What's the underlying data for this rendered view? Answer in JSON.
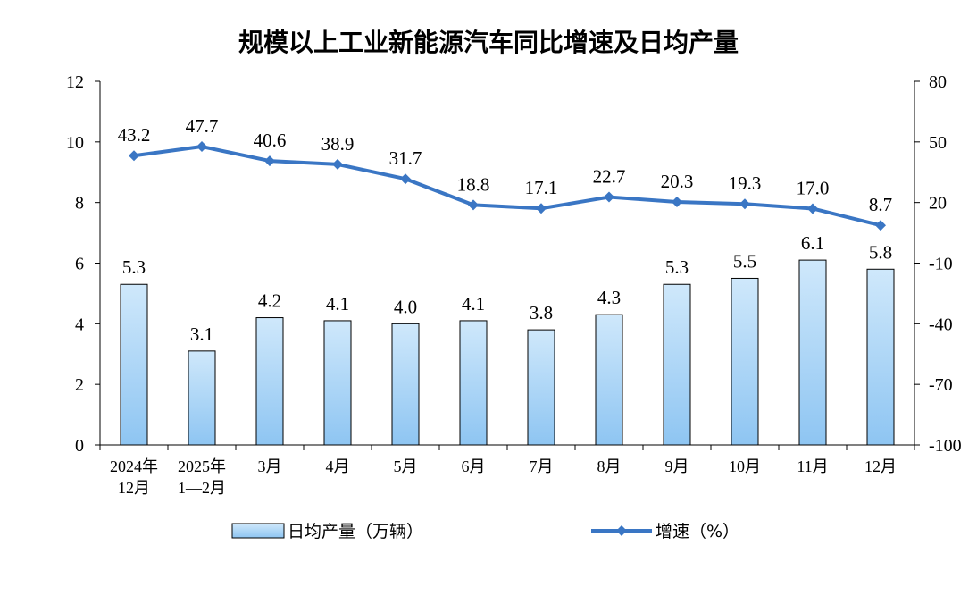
{
  "chart_data": {
    "type": "bar+line",
    "title": "规模以上工业新能源汽车同比增速及日均产量",
    "categories": [
      [
        "2024年",
        "12月"
      ],
      [
        "2025年",
        "1—2月"
      ],
      [
        "3月"
      ],
      [
        "4月"
      ],
      [
        "5月"
      ],
      [
        "6月"
      ],
      [
        "7月"
      ],
      [
        "8月"
      ],
      [
        "9月"
      ],
      [
        "10月"
      ],
      [
        "11月"
      ],
      [
        "12月"
      ]
    ],
    "series": [
      {
        "name": "日均产量（万辆）",
        "type": "bar",
        "axis": "left",
        "values": [
          5.3,
          3.1,
          4.2,
          4.1,
          4.0,
          4.1,
          3.8,
          4.3,
          5.3,
          5.5,
          6.1,
          5.8
        ],
        "labels": [
          "5.3",
          "3.1",
          "4.2",
          "4.1",
          "4.0",
          "4.1",
          "3.8",
          "4.3",
          "5.3",
          "5.5",
          "6.1",
          "5.8"
        ]
      },
      {
        "name": "增速（%）",
        "type": "line",
        "axis": "right",
        "values": [
          43.2,
          47.7,
          40.6,
          38.9,
          31.7,
          18.8,
          17.1,
          22.7,
          20.3,
          19.3,
          17.0,
          8.7
        ],
        "labels": [
          "43.2",
          "47.7",
          "40.6",
          "38.9",
          "31.7",
          "18.8",
          "17.1",
          "22.7",
          "20.3",
          "19.3",
          "17.0",
          "8.7"
        ]
      }
    ],
    "y_left": {
      "min": 0,
      "max": 12,
      "ticks": [
        "0",
        "2",
        "4",
        "6",
        "8",
        "10",
        "12"
      ]
    },
    "y_right": {
      "min": -100,
      "max": 80,
      "ticks": [
        "-100",
        "-70",
        "-40",
        "-10",
        "20",
        "50",
        "80"
      ]
    },
    "grid": false,
    "legend_position": "bottom",
    "colors": {
      "bar_top": "#cfe8fb",
      "bar_bottom": "#8ec5f2",
      "bar_stroke": "#000000",
      "line": "#3a76c4",
      "axis": "#000000"
    }
  }
}
